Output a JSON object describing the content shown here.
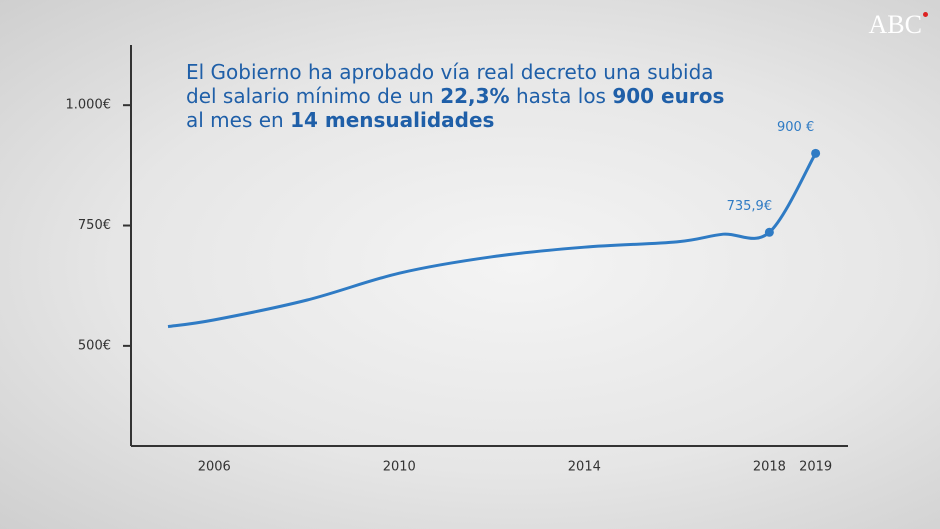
{
  "chart_data": {
    "type": "line",
    "source": "ABC",
    "title_lines": [
      [
        {
          "text": "El Gobierno ha aprobado vía real decreto una subida",
          "bold": false
        }
      ],
      [
        {
          "text": "del salario mínimo de un ",
          "bold": false
        },
        {
          "text": "22,3%",
          "bold": true
        },
        {
          "text": " hasta los ",
          "bold": false
        },
        {
          "text": "900 euros",
          "bold": true
        }
      ],
      [
        {
          "text": "al mes en ",
          "bold": false
        },
        {
          "text": "14 mensualidades",
          "bold": true
        }
      ]
    ],
    "x": [
      2005,
      2006,
      2008,
      2010,
      2012,
      2014,
      2016,
      2017,
      2018,
      2019
    ],
    "series": [
      {
        "color": "#2f7bc4",
        "values": [
          540,
          554,
          595,
          651,
          685,
          705,
          716,
          732,
          735.9,
          900
        ],
        "value_labels": [
          null,
          null,
          null,
          null,
          null,
          null,
          null,
          null,
          "735,9€",
          "900 €"
        ]
      }
    ],
    "xlim": [
      2004.2,
      2019.7
    ],
    "xticks": [
      2006,
      2010,
      2014,
      2018,
      2019
    ],
    "ylim": [
      292,
      1125
    ],
    "yticks": [
      {
        "value": 500,
        "label": "500€"
      },
      {
        "value": 750,
        "label": "750€"
      },
      {
        "value": 1000,
        "label": "1.000€"
      }
    ]
  }
}
